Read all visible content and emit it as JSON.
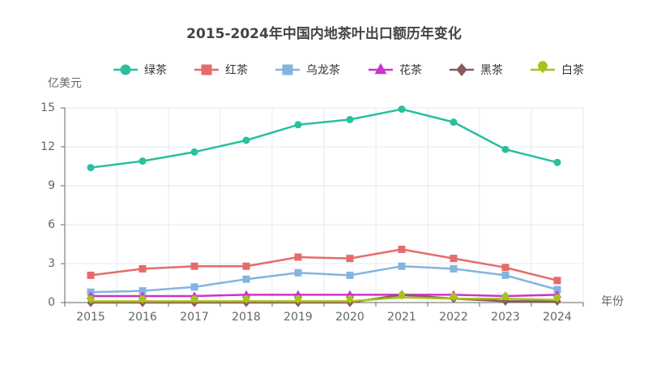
{
  "chart_data": {
    "type": "line",
    "title": "2015-2024年中国内地茶叶出口额历年变化",
    "y_label": "亿美元",
    "x_label": "年份",
    "categories": [
      "2015",
      "2016",
      "2017",
      "2018",
      "2019",
      "2020",
      "2021",
      "2022",
      "2023",
      "2024"
    ],
    "series": [
      {
        "name": "绿茶",
        "color": "#2bbf9f",
        "symbol": "circle",
        "values": [
          10.4,
          10.9,
          11.6,
          12.5,
          13.7,
          14.1,
          14.9,
          13.9,
          11.8,
          10.8
        ]
      },
      {
        "name": "红茶",
        "color": "#e66b6b",
        "symbol": "square",
        "values": [
          2.1,
          2.6,
          2.8,
          2.8,
          3.5,
          3.4,
          4.1,
          3.4,
          2.7,
          1.7
        ]
      },
      {
        "name": "乌龙茶",
        "color": "#84b4e0",
        "symbol": "square",
        "values": [
          0.8,
          0.9,
          1.2,
          1.8,
          2.3,
          2.1,
          2.8,
          2.6,
          2.1,
          1.0
        ]
      },
      {
        "name": "花茶",
        "color": "#cc33cc",
        "symbol": "triangle",
        "values": [
          0.5,
          0.5,
          0.5,
          0.6,
          0.6,
          0.6,
          0.6,
          0.6,
          0.5,
          0.6
        ]
      },
      {
        "name": "黑茶",
        "color": "#8b5a5a",
        "symbol": "diamond",
        "values": [
          0,
          0,
          0,
          0,
          0,
          0,
          0.6,
          0.3,
          0.1,
          0.1
        ]
      },
      {
        "name": "白茶",
        "color": "#a8c21a",
        "symbol": "pin",
        "values": [
          0.1,
          0.1,
          0.1,
          0.1,
          0.1,
          0.1,
          0.4,
          0.3,
          0.3,
          0.2
        ]
      }
    ],
    "ylim": [
      0,
      15
    ],
    "yticks": [
      0,
      3,
      6,
      9,
      12,
      15
    ],
    "grid": true
  }
}
